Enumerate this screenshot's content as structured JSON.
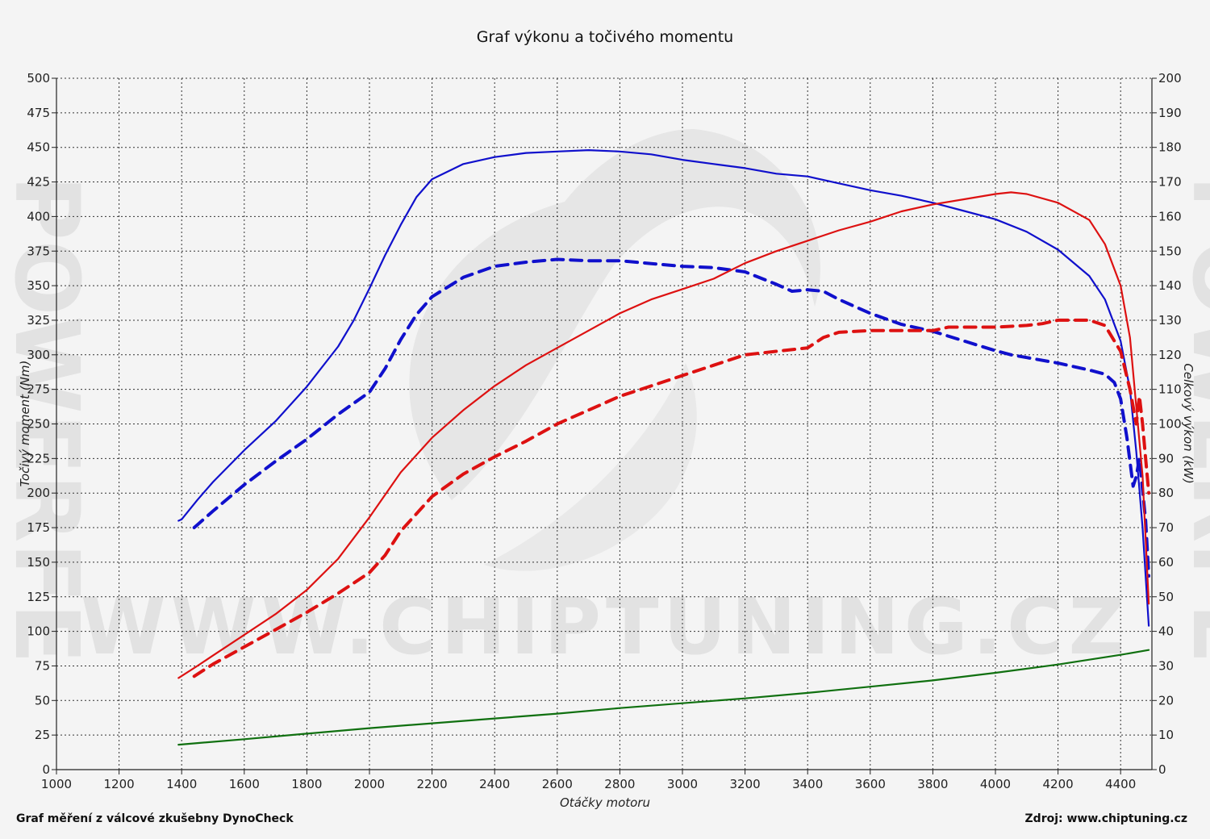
{
  "chart_data": {
    "type": "line",
    "title": "Graf výkonu a točivého momentu",
    "xlabel": "Otáčky motoru",
    "ylabel_left": "Točivý moment (Nm)",
    "ylabel_right": "Celkový výkon (kW)",
    "xlim": [
      1000,
      4500
    ],
    "ylim_left": [
      0,
      500
    ],
    "ylim_right": [
      0,
      200
    ],
    "x_ticks": [
      1000,
      1200,
      1400,
      1600,
      1800,
      2000,
      2200,
      2400,
      2600,
      2800,
      3000,
      3200,
      3400,
      3600,
      3800,
      4000,
      4200,
      4400
    ],
    "y_ticks_left": [
      0,
      25,
      50,
      75,
      100,
      125,
      150,
      175,
      200,
      225,
      250,
      275,
      300,
      325,
      350,
      375,
      400,
      425,
      450,
      475,
      500
    ],
    "y_ticks_right": [
      0,
      10,
      20,
      30,
      40,
      50,
      60,
      70,
      80,
      90,
      100,
      110,
      120,
      130,
      140,
      150,
      160,
      170,
      180,
      190,
      200
    ],
    "grid": true,
    "series": [
      {
        "color": "#1010cc",
        "style": "solid",
        "axis": "left",
        "points": [
          [
            1390,
            180
          ],
          [
            1400,
            181
          ],
          [
            1450,
            195
          ],
          [
            1500,
            208
          ],
          [
            1600,
            231
          ],
          [
            1700,
            252
          ],
          [
            1800,
            277
          ],
          [
            1900,
            306
          ],
          [
            1950,
            325
          ],
          [
            2000,
            348
          ],
          [
            2050,
            372
          ],
          [
            2100,
            394
          ],
          [
            2150,
            414
          ],
          [
            2200,
            427
          ],
          [
            2300,
            438
          ],
          [
            2400,
            443
          ],
          [
            2500,
            446
          ],
          [
            2600,
            447
          ],
          [
            2700,
            448
          ],
          [
            2800,
            447
          ],
          [
            2900,
            445
          ],
          [
            3000,
            441
          ],
          [
            3100,
            438
          ],
          [
            3200,
            435
          ],
          [
            3300,
            431
          ],
          [
            3400,
            429
          ],
          [
            3500,
            424
          ],
          [
            3600,
            419
          ],
          [
            3700,
            415
          ],
          [
            3800,
            410
          ],
          [
            3900,
            404
          ],
          [
            4000,
            398
          ],
          [
            4100,
            389
          ],
          [
            4200,
            376
          ],
          [
            4300,
            357
          ],
          [
            4350,
            340
          ],
          [
            4400,
            310
          ],
          [
            4430,
            275
          ],
          [
            4450,
            230
          ],
          [
            4470,
            175
          ],
          [
            4490,
            104
          ]
        ]
      },
      {
        "color": "#1010cc",
        "style": "dashed",
        "axis": "left",
        "points": [
          [
            1440,
            175
          ],
          [
            1450,
            177
          ],
          [
            1500,
            187
          ],
          [
            1600,
            206
          ],
          [
            1700,
            223
          ],
          [
            1800,
            239
          ],
          [
            1900,
            257
          ],
          [
            2000,
            273
          ],
          [
            2050,
            290
          ],
          [
            2100,
            311
          ],
          [
            2150,
            329
          ],
          [
            2200,
            342
          ],
          [
            2300,
            356
          ],
          [
            2400,
            364
          ],
          [
            2500,
            367
          ],
          [
            2600,
            369
          ],
          [
            2700,
            368
          ],
          [
            2800,
            368
          ],
          [
            2900,
            366
          ],
          [
            3000,
            364
          ],
          [
            3100,
            363
          ],
          [
            3200,
            360
          ],
          [
            3300,
            351
          ],
          [
            3350,
            346
          ],
          [
            3400,
            347
          ],
          [
            3450,
            346
          ],
          [
            3500,
            340
          ],
          [
            3600,
            330
          ],
          [
            3700,
            322
          ],
          [
            3800,
            317
          ],
          [
            3900,
            310
          ],
          [
            4000,
            303
          ],
          [
            4050,
            300
          ],
          [
            4100,
            298
          ],
          [
            4200,
            294
          ],
          [
            4300,
            289
          ],
          [
            4350,
            286
          ],
          [
            4380,
            280
          ],
          [
            4400,
            268
          ],
          [
            4420,
            240
          ],
          [
            4440,
            205
          ],
          [
            4450,
            212
          ],
          [
            4460,
            225
          ],
          [
            4480,
            180
          ],
          [
            4490,
            140
          ]
        ]
      },
      {
        "color": "#dd1111",
        "style": "solid",
        "axis": "right",
        "points": [
          [
            1390,
            26.5
          ],
          [
            1450,
            30
          ],
          [
            1500,
            33
          ],
          [
            1600,
            39
          ],
          [
            1700,
            45
          ],
          [
            1800,
            52
          ],
          [
            1900,
            61
          ],
          [
            2000,
            73
          ],
          [
            2100,
            86
          ],
          [
            2200,
            96
          ],
          [
            2300,
            104
          ],
          [
            2400,
            111
          ],
          [
            2500,
            117
          ],
          [
            2600,
            122
          ],
          [
            2700,
            127
          ],
          [
            2800,
            132
          ],
          [
            2900,
            136
          ],
          [
            3000,
            139
          ],
          [
            3100,
            142
          ],
          [
            3200,
            146.5
          ],
          [
            3300,
            150
          ],
          [
            3400,
            153
          ],
          [
            3500,
            156
          ],
          [
            3600,
            158.5
          ],
          [
            3700,
            161.5
          ],
          [
            3800,
            163.5
          ],
          [
            3900,
            165
          ],
          [
            4000,
            166.5
          ],
          [
            4050,
            167
          ],
          [
            4100,
            166.5
          ],
          [
            4200,
            164
          ],
          [
            4300,
            159
          ],
          [
            4350,
            152
          ],
          [
            4400,
            140
          ],
          [
            4430,
            125
          ],
          [
            4450,
            105
          ],
          [
            4470,
            85
          ],
          [
            4490,
            48
          ]
        ]
      },
      {
        "color": "#dd1111",
        "style": "dashed",
        "axis": "right",
        "points": [
          [
            1440,
            27
          ],
          [
            1500,
            30.5
          ],
          [
            1600,
            35.5
          ],
          [
            1700,
            40.5
          ],
          [
            1800,
            45.5
          ],
          [
            1900,
            51
          ],
          [
            2000,
            57
          ],
          [
            2050,
            62
          ],
          [
            2100,
            69
          ],
          [
            2200,
            79
          ],
          [
            2300,
            85.5
          ],
          [
            2400,
            90.5
          ],
          [
            2500,
            95
          ],
          [
            2600,
            100
          ],
          [
            2700,
            104
          ],
          [
            2800,
            108
          ],
          [
            2900,
            111
          ],
          [
            3000,
            114
          ],
          [
            3100,
            117
          ],
          [
            3200,
            120
          ],
          [
            3300,
            121
          ],
          [
            3400,
            122
          ],
          [
            3450,
            125
          ],
          [
            3500,
            126.5
          ],
          [
            3600,
            127
          ],
          [
            3700,
            127
          ],
          [
            3800,
            127
          ],
          [
            3850,
            128
          ],
          [
            3900,
            128
          ],
          [
            4000,
            128
          ],
          [
            4100,
            128.5
          ],
          [
            4150,
            129
          ],
          [
            4200,
            130
          ],
          [
            4300,
            130
          ],
          [
            4350,
            128.5
          ],
          [
            4400,
            121
          ],
          [
            4430,
            110
          ],
          [
            4450,
            100
          ],
          [
            4460,
            108
          ],
          [
            4470,
            100
          ],
          [
            4480,
            90
          ],
          [
            4490,
            80
          ]
        ]
      },
      {
        "color": "#107010",
        "style": "solid",
        "axis": "left",
        "points": [
          [
            1390,
            18
          ],
          [
            1600,
            22
          ],
          [
            1800,
            26
          ],
          [
            2000,
            30
          ],
          [
            2200,
            33.5
          ],
          [
            2400,
            37
          ],
          [
            2600,
            40.5
          ],
          [
            2800,
            44.5
          ],
          [
            3000,
            48
          ],
          [
            3200,
            51.5
          ],
          [
            3400,
            55.5
          ],
          [
            3600,
            60
          ],
          [
            3800,
            64.5
          ],
          [
            4000,
            70
          ],
          [
            4200,
            76
          ],
          [
            4400,
            83
          ],
          [
            4490,
            86.5
          ]
        ]
      }
    ]
  },
  "footer": {
    "left": "Graf měření z válcové zkušebny DynoCheck",
    "right": "Zdroj: www.chiptuning.cz"
  },
  "watermark": {
    "text": "WWW.CHIPTUNING.CZ",
    "side": "POWERFE"
  }
}
